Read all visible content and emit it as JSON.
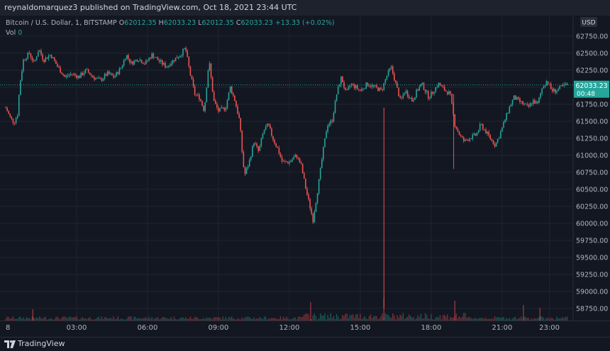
{
  "header": {
    "publisher_line": "reynaldomarquez3 published on TradingView.com, Oct 18, 2021 23:44 UTC"
  },
  "legend": {
    "symbol": "Bitcoin / U.S. Dollar, 1, BITSTAMP",
    "o_label": "O",
    "o_value": "62012.35",
    "h_label": "H",
    "h_value": "62033.23",
    "l_label": "L",
    "l_value": "62012.35",
    "c_label": "C",
    "c_value": "62033.23",
    "change": "+13.33 (+0.02%)",
    "vol_label": "Vol",
    "vol_value": "0"
  },
  "footer": {
    "brand": "TradingView",
    "logo_icon": "tradingview-logo-icon"
  },
  "colors": {
    "background": "#131722",
    "up": "#26a69a",
    "down": "#ef5350",
    "grid": "#1f2430",
    "axis_text": "#b2b5be",
    "price_label_bg": "#26a69a"
  },
  "chart_data": {
    "type": "candlestick",
    "currency_label": "USD",
    "last_price_label": "62033.23",
    "countdown_label": "00:48",
    "last_price": 62033.23,
    "y_ticks": [
      62750,
      62500,
      62250,
      62000,
      61750,
      61500,
      61250,
      61000,
      60750,
      60500,
      60250,
      60000,
      59750,
      59500,
      59250,
      59000,
      58750
    ],
    "y_tick_labels": [
      "62750.00",
      "62500.00",
      "62250.00",
      "62000.00",
      "61750.00",
      "61500.00",
      "61250.00",
      "61000.00",
      "60750.00",
      "60500.00",
      "60250.00",
      "60000.00",
      "59750.00",
      "59500.00",
      "59250.00",
      "59000.00",
      "58750.00"
    ],
    "x_tick_labels": [
      "8",
      "03:00",
      "06:00",
      "09:00",
      "12:00",
      "15:00",
      "18:00",
      "21:00",
      "23:00"
    ],
    "x_tick_hours": [
      0,
      3,
      6,
      9,
      12,
      15,
      18,
      21,
      23
    ],
    "x_range_hours": [
      0,
      23.75
    ],
    "price_path_points": [
      [
        0,
        61700
      ],
      [
        0.2,
        61550
      ],
      [
        0.35,
        61480
      ],
      [
        0.5,
        61600
      ],
      [
        0.6,
        62050
      ],
      [
        0.75,
        62400
      ],
      [
        1.0,
        62500
      ],
      [
        1.2,
        62350
      ],
      [
        1.4,
        62560
      ],
      [
        1.6,
        62400
      ],
      [
        1.9,
        62480
      ],
      [
        2.2,
        62300
      ],
      [
        2.5,
        62150
      ],
      [
        2.8,
        62200
      ],
      [
        3.1,
        62150
      ],
      [
        3.4,
        62250
      ],
      [
        3.7,
        62150
      ],
      [
        4.0,
        62100
      ],
      [
        4.3,
        62200
      ],
      [
        4.6,
        62150
      ],
      [
        4.9,
        62300
      ],
      [
        5.1,
        62480
      ],
      [
        5.3,
        62350
      ],
      [
        5.6,
        62420
      ],
      [
        5.9,
        62350
      ],
      [
        6.2,
        62480
      ],
      [
        6.5,
        62380
      ],
      [
        6.8,
        62300
      ],
      [
        7.1,
        62400
      ],
      [
        7.4,
        62480
      ],
      [
        7.6,
        62580
      ],
      [
        7.8,
        62200
      ],
      [
        8.0,
        61900
      ],
      [
        8.2,
        61850
      ],
      [
        8.4,
        61650
      ],
      [
        8.6,
        62400
      ],
      [
        8.8,
        61800
      ],
      [
        9.0,
        61650
      ],
      [
        9.3,
        61700
      ],
      [
        9.5,
        62000
      ],
      [
        9.7,
        61800
      ],
      [
        9.9,
        61500
      ],
      [
        10.0,
        61050
      ],
      [
        10.1,
        60700
      ],
      [
        10.3,
        60900
      ],
      [
        10.5,
        61200
      ],
      [
        10.7,
        61050
      ],
      [
        10.9,
        61350
      ],
      [
        11.1,
        61450
      ],
      [
        11.3,
        61250
      ],
      [
        11.5,
        61100
      ],
      [
        11.7,
        60900
      ],
      [
        12.0,
        60900
      ],
      [
        12.3,
        61000
      ],
      [
        12.5,
        60850
      ],
      [
        12.7,
        60500
      ],
      [
        12.9,
        60200
      ],
      [
        13.0,
        60050
      ],
      [
        13.2,
        60500
      ],
      [
        13.4,
        61000
      ],
      [
        13.6,
        61450
      ],
      [
        13.8,
        61500
      ],
      [
        14.0,
        61900
      ],
      [
        14.2,
        62150
      ],
      [
        14.4,
        61900
      ],
      [
        14.6,
        62050
      ],
      [
        14.8,
        62000
      ],
      [
        15.0,
        61950
      ],
      [
        15.3,
        62050
      ],
      [
        15.6,
        62000
      ],
      [
        15.9,
        61950
      ],
      [
        16.1,
        62150
      ],
      [
        16.3,
        62300
      ],
      [
        16.5,
        62050
      ],
      [
        16.7,
        61800
      ],
      [
        16.9,
        61950
      ],
      [
        17.2,
        61800
      ],
      [
        17.4,
        61950
      ],
      [
        17.6,
        62050
      ],
      [
        17.9,
        61850
      ],
      [
        18.1,
        61950
      ],
      [
        18.3,
        62050
      ],
      [
        18.6,
        61950
      ],
      [
        18.8,
        61900
      ],
      [
        19.0,
        61450
      ],
      [
        19.2,
        61300
      ],
      [
        19.4,
        61200
      ],
      [
        19.6,
        61250
      ],
      [
        19.9,
        61300
      ],
      [
        20.1,
        61450
      ],
      [
        20.3,
        61350
      ],
      [
        20.5,
        61250
      ],
      [
        20.7,
        61150
      ],
      [
        20.9,
        61300
      ],
      [
        21.1,
        61500
      ],
      [
        21.3,
        61700
      ],
      [
        21.5,
        61850
      ],
      [
        21.7,
        61800
      ],
      [
        21.9,
        61750
      ],
      [
        22.1,
        61700
      ],
      [
        22.3,
        61800
      ],
      [
        22.5,
        61750
      ],
      [
        22.7,
        62000
      ],
      [
        22.9,
        62100
      ],
      [
        23.1,
        61950
      ],
      [
        23.3,
        61950
      ],
      [
        23.5,
        62000
      ],
      [
        23.75,
        62033
      ]
    ],
    "spike_wicks": [
      {
        "hour": 16.0,
        "high": 61700,
        "low": 58750
      },
      {
        "hour": 18.95,
        "high": 61900,
        "low": 60800
      }
    ]
  }
}
